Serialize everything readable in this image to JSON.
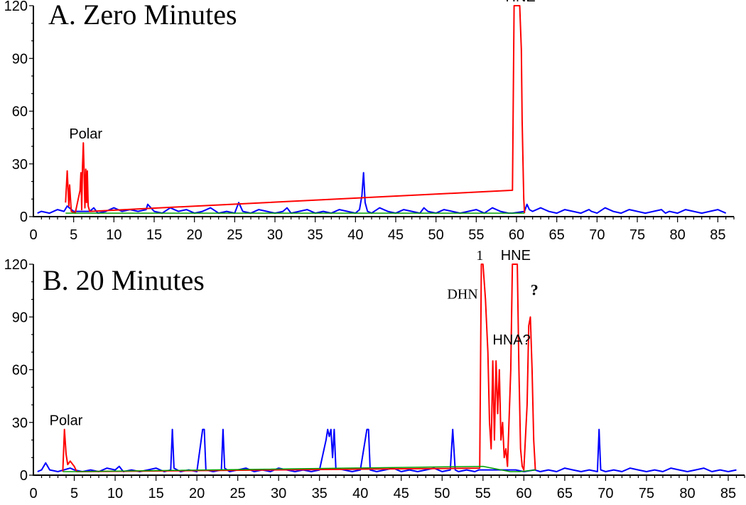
{
  "chart_data": [
    {
      "type": "line",
      "panel_title": "A. Zero Minutes",
      "xlabel": "",
      "ylabel": "",
      "xlim": [
        0,
        87
      ],
      "ylim": [
        0,
        120
      ],
      "xticks": [
        "0",
        "5",
        "10",
        "15",
        "20",
        "25",
        "30",
        "35",
        "40",
        "45",
        "50",
        "55",
        "60",
        "65",
        "70",
        "75",
        "80",
        "85"
      ],
      "yticks": [
        "0",
        "30",
        "60",
        "90",
        "120"
      ],
      "colors": {
        "baseline": "#0000ff",
        "peak": "#ff0000",
        "integration": "#00a000"
      },
      "series": [
        {
          "color": "#0000ff",
          "x": [
            0.5,
            1,
            2,
            3,
            3.8,
            4.2,
            5,
            6,
            7,
            7.5,
            8,
            9,
            10,
            11,
            12,
            13,
            14,
            14.2,
            15,
            16,
            17,
            18,
            19,
            20,
            21,
            22,
            23,
            24,
            25,
            25.5,
            26,
            27,
            28,
            29,
            30,
            31,
            31.5,
            32,
            33,
            34,
            35,
            36,
            37,
            38,
            39,
            40,
            40.5,
            40.8,
            41,
            41.2,
            41.5,
            42,
            43,
            44,
            45,
            46,
            47,
            48,
            48.5,
            49,
            50,
            51,
            52,
            53,
            54,
            55,
            56,
            57,
            58,
            59,
            59.5,
            61,
            61.3,
            61.6,
            62,
            63,
            64,
            65,
            66,
            67,
            68,
            69,
            69.3,
            70,
            71,
            72,
            73,
            74,
            75,
            76,
            77,
            78,
            78.5,
            79,
            80,
            81,
            82,
            83,
            84,
            85,
            86
          ],
          "y": [
            2,
            3,
            2,
            4,
            3,
            6,
            3,
            3,
            3,
            5,
            2,
            3,
            5,
            3,
            4,
            3,
            4,
            7,
            3,
            2,
            5,
            3,
            4,
            2,
            3,
            5,
            2,
            3,
            2,
            8,
            3,
            2,
            4,
            3,
            2,
            3,
            5,
            2,
            3,
            4,
            2,
            3,
            2,
            4,
            3,
            2,
            4,
            12,
            25,
            8,
            3,
            2,
            5,
            3,
            2,
            4,
            3,
            2,
            5,
            3,
            2,
            4,
            3,
            2,
            3,
            4,
            2,
            5,
            3,
            2,
            2,
            3,
            7,
            4,
            3,
            5,
            3,
            2,
            4,
            3,
            2,
            4,
            3,
            2,
            5,
            3,
            2,
            4,
            3,
            2,
            3,
            4,
            2,
            3,
            2,
            4,
            3,
            2,
            3,
            4,
            2
          ]
        },
        {
          "color": "#ff0000",
          "x": [
            4,
            4.2,
            4.4,
            4.5,
            4.7,
            5.2,
            5.8,
            5.9,
            6.0,
            6.1,
            6.2,
            6.3,
            6.4,
            6.5,
            6.6,
            6.7,
            6.8,
            7.0,
            59.5,
            59.7,
            59.9,
            60.0,
            60.2,
            60.4,
            60.6,
            60.7,
            60.9,
            61.0
          ],
          "y": [
            8,
            26,
            6,
            18,
            3,
            2,
            15,
            25,
            4,
            28,
            42,
            25,
            5,
            27,
            8,
            26,
            6,
            3,
            15,
            120,
            120,
            120,
            120,
            120,
            95,
            55,
            10,
            2
          ]
        },
        {
          "color": "#00a000",
          "x": [
            4,
            7,
            59.5,
            61
          ],
          "y": [
            2,
            2,
            2,
            2
          ]
        }
      ],
      "annotations": [
        {
          "text": "Polar",
          "x": 6.5,
          "y": 42,
          "style": "sans"
        },
        {
          "text": "HNE",
          "x": 60.5,
          "y": 120,
          "style": "sans"
        }
      ]
    },
    {
      "type": "line",
      "panel_title": "B. 20 Minutes",
      "xlabel": "",
      "ylabel": "",
      "xlim": [
        0,
        87
      ],
      "ylim": [
        0,
        120
      ],
      "xticks": [
        "0",
        "5",
        "10",
        "15",
        "20",
        "25",
        "30",
        "35",
        "40",
        "45",
        "50",
        "55",
        "60",
        "65",
        "70",
        "75",
        "80",
        "85"
      ],
      "yticks": [
        "0",
        "30",
        "60",
        "90",
        "120"
      ],
      "colors": {
        "baseline": "#0000ff",
        "peak": "#ff0000",
        "integration": "#00a000"
      },
      "series": [
        {
          "color": "#0000ff",
          "x": [
            0.5,
            1,
            1.5,
            2,
            3,
            4.5,
            5,
            6,
            7,
            8,
            9,
            10,
            10.5,
            11,
            12,
            13,
            14,
            15,
            16,
            16.8,
            17,
            17.2,
            18,
            19,
            20,
            20.7,
            20.9,
            21.1,
            22,
            23,
            23.2,
            23.4,
            24,
            25,
            26,
            27,
            28,
            29,
            30,
            31,
            32,
            33,
            34,
            35,
            35.8,
            36,
            36.2,
            36.4,
            36.6,
            36.8,
            37,
            38,
            39,
            40,
            40.8,
            41,
            41.2,
            42,
            43,
            44,
            45,
            46,
            47,
            48,
            49,
            50,
            51,
            51.3,
            51.6,
            52,
            53,
            54,
            54.5,
            56,
            57.5,
            59,
            60,
            61.3,
            62,
            63,
            64,
            65,
            66,
            67,
            68,
            69,
            69.2,
            69.4,
            70,
            71,
            72,
            73,
            74,
            75,
            76,
            77,
            78,
            79,
            80,
            81,
            82,
            83,
            84,
            85,
            86
          ],
          "y": [
            2,
            3,
            7,
            3,
            2,
            4,
            3,
            2,
            3,
            2,
            4,
            3,
            5,
            2,
            3,
            2,
            3,
            4,
            2,
            3,
            26,
            4,
            2,
            3,
            2,
            26,
            26,
            3,
            2,
            3,
            26,
            4,
            2,
            3,
            4,
            2,
            3,
            2,
            4,
            3,
            2,
            3,
            2,
            3,
            20,
            26,
            22,
            26,
            10,
            26,
            4,
            3,
            2,
            3,
            26,
            26,
            3,
            2,
            3,
            4,
            2,
            3,
            2,
            3,
            4,
            2,
            3,
            26,
            3,
            2,
            3,
            2,
            3,
            3,
            3,
            3,
            2,
            3,
            2,
            3,
            2,
            4,
            3,
            2,
            3,
            2,
            26,
            3,
            2,
            3,
            2,
            4,
            3,
            2,
            3,
            2,
            4,
            3,
            2,
            3,
            4,
            2,
            3,
            2,
            3
          ]
        },
        {
          "color": "#ff0000",
          "x": [
            3.6,
            3.8,
            4.0,
            4.2,
            4.5,
            5.0,
            5.3,
            54.6,
            54.8,
            55.0,
            55.3,
            55.6,
            55.8,
            56.0,
            56.2,
            56.4,
            56.6,
            56.8,
            57.0,
            57.2,
            57.4,
            57.6,
            57.8,
            58.0,
            58.4,
            58.6,
            58.8,
            59.0,
            59.2,
            59.4,
            59.6,
            59.8,
            60.0,
            60.4,
            60.6,
            60.8,
            61.0,
            61.2,
            61.4
          ],
          "y": [
            2,
            26,
            12,
            6,
            8,
            5,
            2,
            4,
            120,
            120,
            100,
            70,
            30,
            15,
            65,
            20,
            65,
            35,
            60,
            20,
            30,
            10,
            15,
            5,
            60,
            120,
            120,
            120,
            120,
            60,
            15,
            5,
            3,
            40,
            85,
            90,
            60,
            20,
            3
          ]
        },
        {
          "color": "#00a000",
          "x": [
            3.6,
            5.3,
            55,
            58.3,
            59.5,
            61.5
          ],
          "y": [
            2,
            2,
            5,
            2,
            2,
            3
          ]
        }
      ],
      "annotations": [
        {
          "text": "Polar",
          "x": 4,
          "y": 26,
          "style": "sans"
        },
        {
          "text": "1",
          "x": 54.6,
          "y": 120,
          "style": "serif"
        },
        {
          "text": "HNE",
          "x": 59,
          "y": 120,
          "style": "sans"
        },
        {
          "text": "DHN",
          "x": 52.5,
          "y": 98,
          "style": "serif"
        },
        {
          "text": "HNA?",
          "x": 58.5,
          "y": 72,
          "style": "sans"
        },
        {
          "text": "?",
          "x": 61.3,
          "y": 100,
          "style": "q"
        }
      ]
    }
  ]
}
